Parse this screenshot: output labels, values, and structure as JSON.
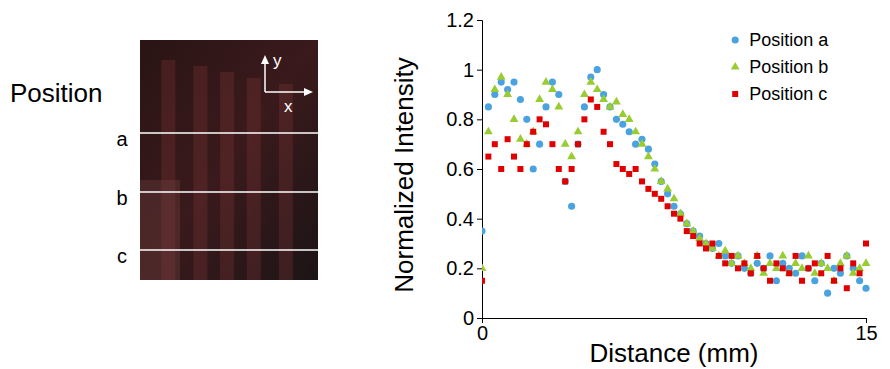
{
  "image_panel": {
    "heading": "Position",
    "positions": [
      "a",
      "b",
      "c"
    ],
    "axis_labels": {
      "x": "x",
      "y": "y"
    }
  },
  "chart_data": {
    "type": "scatter",
    "x_label": "Distance (mm)",
    "y_label": "Normalized Intensity",
    "xlim": [
      0,
      15
    ],
    "xticks": [
      0,
      15
    ],
    "ylim": [
      0,
      1.2
    ],
    "yticks": [
      0,
      0.2,
      0.4,
      0.6,
      0.8,
      1,
      1.2
    ],
    "grid": false,
    "legend": "upper right",
    "x": [
      0,
      0.25,
      0.5,
      0.75,
      1,
      1.25,
      1.5,
      1.75,
      2,
      2.25,
      2.5,
      2.75,
      3,
      3.25,
      3.5,
      3.75,
      4,
      4.25,
      4.5,
      4.75,
      5,
      5.25,
      5.5,
      5.75,
      6,
      6.25,
      6.5,
      6.75,
      7,
      7.25,
      7.5,
      7.75,
      8,
      8.25,
      8.5,
      8.75,
      9,
      9.25,
      9.5,
      9.75,
      10,
      10.25,
      10.5,
      10.75,
      11,
      11.25,
      11.5,
      11.75,
      12,
      12.25,
      12.5,
      12.75,
      13,
      13.25,
      13.5,
      13.75,
      14,
      14.25,
      14.5,
      14.75,
      15
    ],
    "series": [
      {
        "name": "Position a",
        "color": "#4aa3df",
        "marker": "circle",
        "values": [
          0.35,
          0.85,
          0.9,
          0.95,
          0.92,
          0.95,
          0.88,
          0.8,
          0.6,
          0.7,
          0.85,
          0.95,
          0.9,
          0.55,
          0.45,
          0.7,
          0.85,
          0.97,
          1.0,
          0.9,
          0.85,
          0.8,
          0.78,
          0.75,
          0.7,
          0.72,
          0.68,
          0.62,
          0.55,
          0.5,
          0.45,
          0.42,
          0.38,
          0.35,
          0.33,
          0.3,
          0.28,
          0.3,
          0.25,
          0.22,
          0.25,
          0.2,
          0.18,
          0.22,
          0.2,
          0.25,
          0.15,
          0.22,
          0.2,
          0.18,
          0.25,
          0.2,
          0.15,
          0.22,
          0.1,
          0.2,
          0.18,
          0.25,
          0.2,
          0.15,
          0.12
        ]
      },
      {
        "name": "Position b",
        "color": "#99cc33",
        "marker": "triangle",
        "values": [
          0.2,
          0.75,
          0.92,
          0.97,
          0.9,
          0.8,
          0.72,
          0.7,
          0.75,
          0.88,
          0.95,
          0.92,
          0.85,
          0.7,
          0.65,
          0.75,
          0.9,
          0.95,
          0.92,
          0.88,
          0.85,
          0.87,
          0.82,
          0.8,
          0.75,
          0.7,
          0.65,
          0.6,
          0.55,
          0.52,
          0.48,
          0.42,
          0.38,
          0.35,
          0.32,
          0.3,
          0.28,
          0.25,
          0.27,
          0.22,
          0.25,
          0.22,
          0.2,
          0.25,
          0.18,
          0.22,
          0.2,
          0.25,
          0.18,
          0.22,
          0.2,
          0.25,
          0.18,
          0.22,
          0.2,
          0.15,
          0.22,
          0.25,
          0.18,
          0.2,
          0.22
        ]
      },
      {
        "name": "Position c",
        "color": "#e00000",
        "marker": "square",
        "values": [
          0.15,
          0.65,
          0.7,
          0.6,
          0.72,
          0.65,
          0.6,
          0.7,
          0.75,
          0.8,
          0.78,
          0.7,
          0.6,
          0.55,
          0.6,
          0.7,
          0.8,
          0.88,
          0.85,
          0.75,
          0.7,
          0.62,
          0.6,
          0.58,
          0.6,
          0.55,
          0.52,
          0.5,
          0.48,
          0.45,
          0.42,
          0.4,
          0.35,
          0.33,
          0.3,
          0.28,
          0.3,
          0.25,
          0.22,
          0.25,
          0.2,
          0.22,
          0.18,
          0.25,
          0.2,
          0.15,
          0.22,
          0.2,
          0.18,
          0.25,
          0.15,
          0.2,
          0.22,
          0.18,
          0.25,
          0.15,
          0.2,
          0.12,
          0.22,
          0.18,
          0.3
        ]
      }
    ]
  }
}
